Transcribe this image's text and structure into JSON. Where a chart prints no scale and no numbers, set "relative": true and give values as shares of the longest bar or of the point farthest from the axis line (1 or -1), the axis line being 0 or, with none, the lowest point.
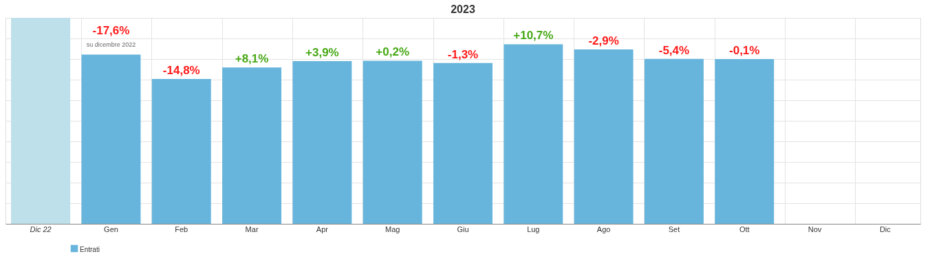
{
  "chart_data": {
    "type": "bar",
    "title": "2023",
    "relative": true,
    "categories": [
      "Dic 22",
      "Gen",
      "Feb",
      "Mar",
      "Apr",
      "Mag",
      "Giu",
      "Lug",
      "Ago",
      "Set",
      "Ott",
      "Nov",
      "Dic"
    ],
    "series": [
      {
        "name": "Entrati",
        "color": "#67b5dc",
        "colors": [
          "#bde0ea",
          "#67b5dc",
          "#67b5dc",
          "#67b5dc",
          "#67b5dc",
          "#67b5dc",
          "#67b5dc",
          "#67b5dc",
          "#67b5dc",
          "#67b5dc",
          "#67b5dc",
          "#67b5dc",
          "#67b5dc"
        ],
        "values": [
          1,
          0.822,
          0.703,
          0.759,
          0.79,
          0.792,
          0.781,
          0.872,
          0.847,
          0.801,
          0.8,
          null,
          null
        ]
      }
    ],
    "annotations": [
      "-17,6%",
      "-14,8%",
      "+8,1%",
      "+3,9%",
      "+0,2%",
      "-1,3%",
      "+10,7%",
      "-2,9%",
      "-5,4%",
      "-0,1%",
      "su dicembre 2022"
    ],
    "grid": true,
    "legend": "bottom left"
  }
}
